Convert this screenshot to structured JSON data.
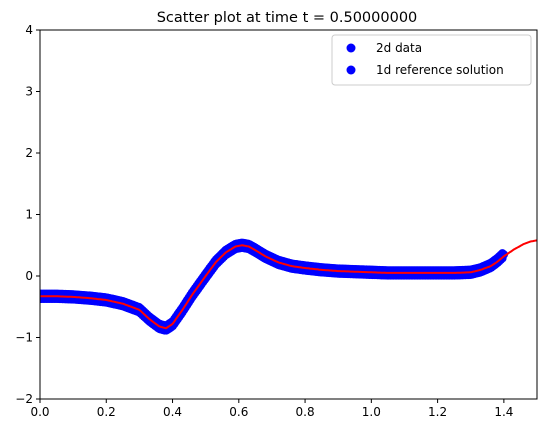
{
  "chart_data": {
    "type": "scatter",
    "title": "Scatter plot at time t =      0.50000000",
    "xlim": [
      0.0,
      1.5
    ],
    "ylim": [
      -2,
      4
    ],
    "xticks": [
      "0.0",
      "0.2",
      "0.4",
      "0.6",
      "0.8",
      "1.0",
      "1.2",
      "1.4"
    ],
    "yticks": [
      "−2",
      "−1",
      "0",
      "1",
      "2",
      "3",
      "4"
    ],
    "grid": false,
    "legend_position": "top-right",
    "series": [
      {
        "name": "2d data",
        "kind": "markers",
        "color": "#0000ff",
        "x": [
          0.0,
          0.05,
          0.1,
          0.15,
          0.2,
          0.25,
          0.3,
          0.33,
          0.36,
          0.38,
          0.4,
          0.43,
          0.46,
          0.5,
          0.53,
          0.56,
          0.59,
          0.61,
          0.63,
          0.65,
          0.68,
          0.72,
          0.76,
          0.8,
          0.85,
          0.9,
          0.95,
          1.0,
          1.05,
          1.1,
          1.15,
          1.2,
          1.25,
          1.3,
          1.33,
          1.36,
          1.38,
          1.4
        ],
        "y": [
          -0.33,
          -0.33,
          -0.34,
          -0.36,
          -0.39,
          -0.45,
          -0.55,
          -0.7,
          -0.82,
          -0.85,
          -0.78,
          -0.55,
          -0.3,
          0.0,
          0.22,
          0.38,
          0.48,
          0.5,
          0.48,
          0.42,
          0.32,
          0.22,
          0.16,
          0.13,
          0.1,
          0.08,
          0.07,
          0.06,
          0.05,
          0.05,
          0.05,
          0.05,
          0.05,
          0.06,
          0.1,
          0.17,
          0.25,
          0.35
        ]
      },
      {
        "name": "1d reference solution",
        "kind": "line",
        "color": "#ff0000",
        "x": [
          0.0,
          0.05,
          0.1,
          0.15,
          0.2,
          0.25,
          0.3,
          0.33,
          0.36,
          0.38,
          0.4,
          0.43,
          0.46,
          0.5,
          0.53,
          0.56,
          0.59,
          0.61,
          0.63,
          0.65,
          0.68,
          0.72,
          0.76,
          0.8,
          0.85,
          0.9,
          0.95,
          1.0,
          1.05,
          1.1,
          1.15,
          1.2,
          1.25,
          1.3,
          1.33,
          1.36,
          1.38,
          1.4,
          1.43,
          1.46,
          1.48,
          1.5
        ],
        "y": [
          -0.33,
          -0.33,
          -0.34,
          -0.36,
          -0.39,
          -0.45,
          -0.55,
          -0.7,
          -0.82,
          -0.85,
          -0.78,
          -0.55,
          -0.3,
          0.0,
          0.22,
          0.38,
          0.48,
          0.5,
          0.48,
          0.42,
          0.32,
          0.22,
          0.16,
          0.13,
          0.1,
          0.08,
          0.07,
          0.06,
          0.05,
          0.05,
          0.05,
          0.05,
          0.05,
          0.06,
          0.1,
          0.16,
          0.23,
          0.32,
          0.43,
          0.52,
          0.56,
          0.58
        ]
      }
    ],
    "legend": [
      {
        "label": "2d data",
        "marker": "circle",
        "color": "#0000ff"
      },
      {
        "label": "1d reference solution",
        "marker": "circle",
        "color": "#0000ff"
      }
    ]
  }
}
